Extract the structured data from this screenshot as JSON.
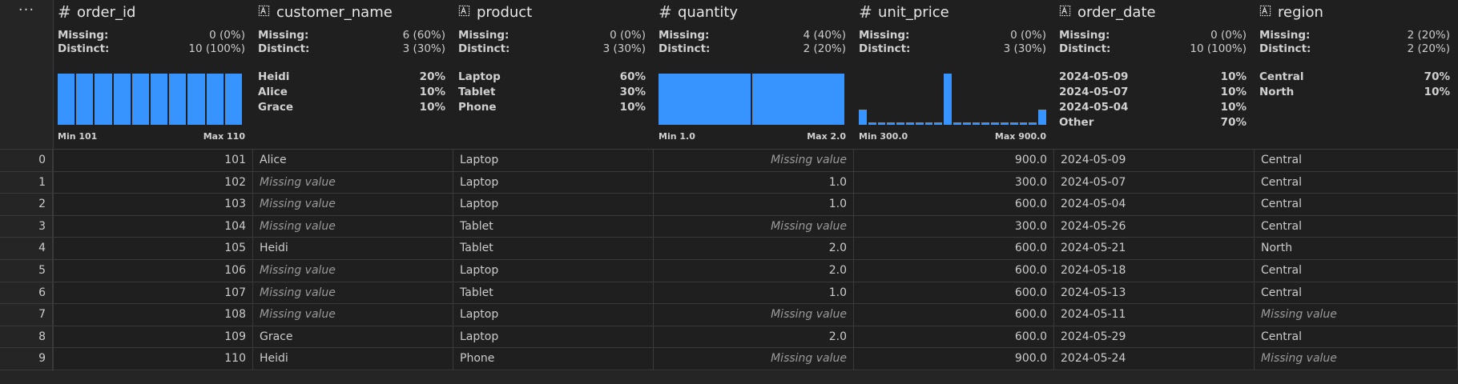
{
  "menu_glyph": "···",
  "columns": [
    {
      "key": "order_id",
      "name": "order_id",
      "type": "numeric",
      "missing": "0 (0%)",
      "distinct": "10 (100%)",
      "range_min": "Min 101",
      "range_max": "Max 110",
      "hist": [
        1,
        1,
        1,
        1,
        1,
        1,
        1,
        1,
        1,
        1
      ]
    },
    {
      "key": "customer_name",
      "name": "customer_name",
      "type": "text",
      "missing": "6 (60%)",
      "distinct": "3 (30%)",
      "top": [
        {
          "label": "Heidi",
          "pct": "20%"
        },
        {
          "label": "Alice",
          "pct": "10%"
        },
        {
          "label": "Grace",
          "pct": "10%"
        }
      ]
    },
    {
      "key": "product",
      "name": "product",
      "type": "text",
      "missing": "0 (0%)",
      "distinct": "3 (30%)",
      "top": [
        {
          "label": "Laptop",
          "pct": "60%"
        },
        {
          "label": "Tablet",
          "pct": "30%"
        },
        {
          "label": "Phone",
          "pct": "10%"
        }
      ]
    },
    {
      "key": "quantity",
      "name": "quantity",
      "type": "numeric",
      "missing": "4 (40%)",
      "distinct": "2 (20%)",
      "range_min": "Min 1.0",
      "range_max": "Max 2.0",
      "hist": [
        1,
        1
      ]
    },
    {
      "key": "unit_price",
      "name": "unit_price",
      "type": "numeric",
      "missing": "0 (0%)",
      "distinct": "3 (30%)",
      "range_min": "Min 300.0",
      "range_max": "Max 900.0",
      "hist": [
        0.3,
        0.05,
        0.05,
        0.05,
        0.05,
        0.05,
        0.05,
        0.05,
        0.05,
        1,
        0.05,
        0.05,
        0.05,
        0.05,
        0.05,
        0.05,
        0.05,
        0.05,
        0.05,
        0.3
      ]
    },
    {
      "key": "order_date",
      "name": "order_date",
      "type": "text",
      "missing": "0 (0%)",
      "distinct": "10 (100%)",
      "top": [
        {
          "label": "2024-05-09",
          "pct": "10%"
        },
        {
          "label": "2024-05-07",
          "pct": "10%"
        },
        {
          "label": "2024-05-04",
          "pct": "10%"
        },
        {
          "label": "Other",
          "pct": "70%"
        }
      ]
    },
    {
      "key": "region",
      "name": "region",
      "type": "text",
      "missing": "2 (20%)",
      "distinct": "2 (20%)",
      "top": [
        {
          "label": "Central",
          "pct": "70%"
        },
        {
          "label": "North",
          "pct": "10%"
        }
      ]
    }
  ],
  "labels": {
    "missing": "Missing:",
    "distinct": "Distinct:",
    "missing_value": "Missing value"
  },
  "rows": [
    {
      "idx": "0",
      "order_id": "101",
      "customer_name": "Alice",
      "product": "Laptop",
      "quantity": null,
      "unit_price": "900.0",
      "order_date": "2024-05-09",
      "region": "Central"
    },
    {
      "idx": "1",
      "order_id": "102",
      "customer_name": null,
      "product": "Laptop",
      "quantity": "1.0",
      "unit_price": "300.0",
      "order_date": "2024-05-07",
      "region": "Central"
    },
    {
      "idx": "2",
      "order_id": "103",
      "customer_name": null,
      "product": "Laptop",
      "quantity": "1.0",
      "unit_price": "600.0",
      "order_date": "2024-05-04",
      "region": "Central"
    },
    {
      "idx": "3",
      "order_id": "104",
      "customer_name": null,
      "product": "Tablet",
      "quantity": null,
      "unit_price": "300.0",
      "order_date": "2024-05-26",
      "region": "Central"
    },
    {
      "idx": "4",
      "order_id": "105",
      "customer_name": "Heidi",
      "product": "Tablet",
      "quantity": "2.0",
      "unit_price": "600.0",
      "order_date": "2024-05-21",
      "region": "North"
    },
    {
      "idx": "5",
      "order_id": "106",
      "customer_name": null,
      "product": "Laptop",
      "quantity": "2.0",
      "unit_price": "600.0",
      "order_date": "2024-05-18",
      "region": "Central"
    },
    {
      "idx": "6",
      "order_id": "107",
      "customer_name": null,
      "product": "Tablet",
      "quantity": "1.0",
      "unit_price": "600.0",
      "order_date": "2024-05-13",
      "region": "Central"
    },
    {
      "idx": "7",
      "order_id": "108",
      "customer_name": null,
      "product": "Laptop",
      "quantity": null,
      "unit_price": "600.0",
      "order_date": "2024-05-11",
      "region": null
    },
    {
      "idx": "8",
      "order_id": "109",
      "customer_name": "Grace",
      "product": "Laptop",
      "quantity": "2.0",
      "unit_price": "600.0",
      "order_date": "2024-05-29",
      "region": "Central"
    },
    {
      "idx": "9",
      "order_id": "110",
      "customer_name": "Heidi",
      "product": "Phone",
      "quantity": null,
      "unit_price": "900.0",
      "order_date": "2024-05-24",
      "region": null
    }
  ],
  "colors": {
    "bar": "#3794ff",
    "missing_text": "#9a9a9a"
  }
}
